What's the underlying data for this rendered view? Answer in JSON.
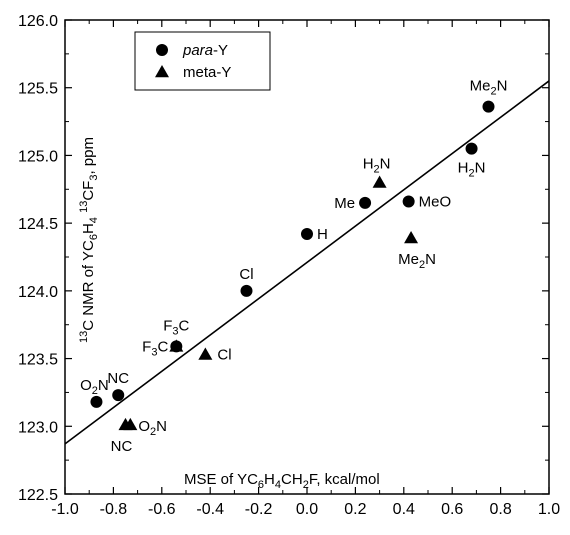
{
  "chart_data": {
    "type": "scatter",
    "xlabel": "MSE of YC6H4CH2F, kcal/mol",
    "ylabel": "13C NMR of YC6H4 13CF3, ppm",
    "xlim": [
      -1.0,
      1.0
    ],
    "ylim": [
      122.5,
      126.0
    ],
    "xticks": [
      "-1.0",
      "-0.8",
      "-0.6",
      "-0.4",
      "-0.2",
      "0.0",
      "0.2",
      "0.4",
      "0.6",
      "0.8",
      "1.0"
    ],
    "yticks": [
      "122.5",
      "123.0",
      "123.5",
      "124.0",
      "124.5",
      "125.0",
      "125.5",
      "126.0"
    ],
    "grid": false,
    "legend_position": "top-left",
    "series": [
      {
        "name": "para-Y",
        "marker": "circle",
        "points": [
          {
            "x": 0.75,
            "y": 125.36,
            "label": "Me2N"
          },
          {
            "x": 0.68,
            "y": 125.05,
            "label": "H2N"
          },
          {
            "x": 0.24,
            "y": 124.65,
            "label": "Me"
          },
          {
            "x": 0.42,
            "y": 124.66,
            "label": "MeO"
          },
          {
            "x": 0.0,
            "y": 124.42,
            "label": "H"
          },
          {
            "x": -0.25,
            "y": 124.0,
            "label": "Cl"
          },
          {
            "x": -0.54,
            "y": 123.59,
            "label": "F3C"
          },
          {
            "x": -0.78,
            "y": 123.23,
            "label": "NC"
          },
          {
            "x": -0.87,
            "y": 123.18,
            "label": "O2N"
          }
        ]
      },
      {
        "name": "meta-Y",
        "marker": "triangle",
        "points": [
          {
            "x": 0.3,
            "y": 124.8,
            "label": "H2N"
          },
          {
            "x": 0.43,
            "y": 124.39,
            "label": "Me2N"
          },
          {
            "x": -0.42,
            "y": 123.53,
            "label": "Cl"
          },
          {
            "x": -0.54,
            "y": 123.59,
            "label": "F3C"
          },
          {
            "x": -0.75,
            "y": 123.01,
            "label": "NC"
          },
          {
            "x": -0.73,
            "y": 123.01,
            "label": "O2N"
          }
        ]
      }
    ],
    "fit_line": {
      "x": [
        -1.0,
        1.0
      ],
      "y": [
        122.87,
        125.55
      ]
    },
    "legend": [
      {
        "marker": "circle",
        "italic": "para",
        "rest": "-Y"
      },
      {
        "marker": "triangle",
        "italic": "",
        "rest": "meta-Y"
      }
    ]
  }
}
